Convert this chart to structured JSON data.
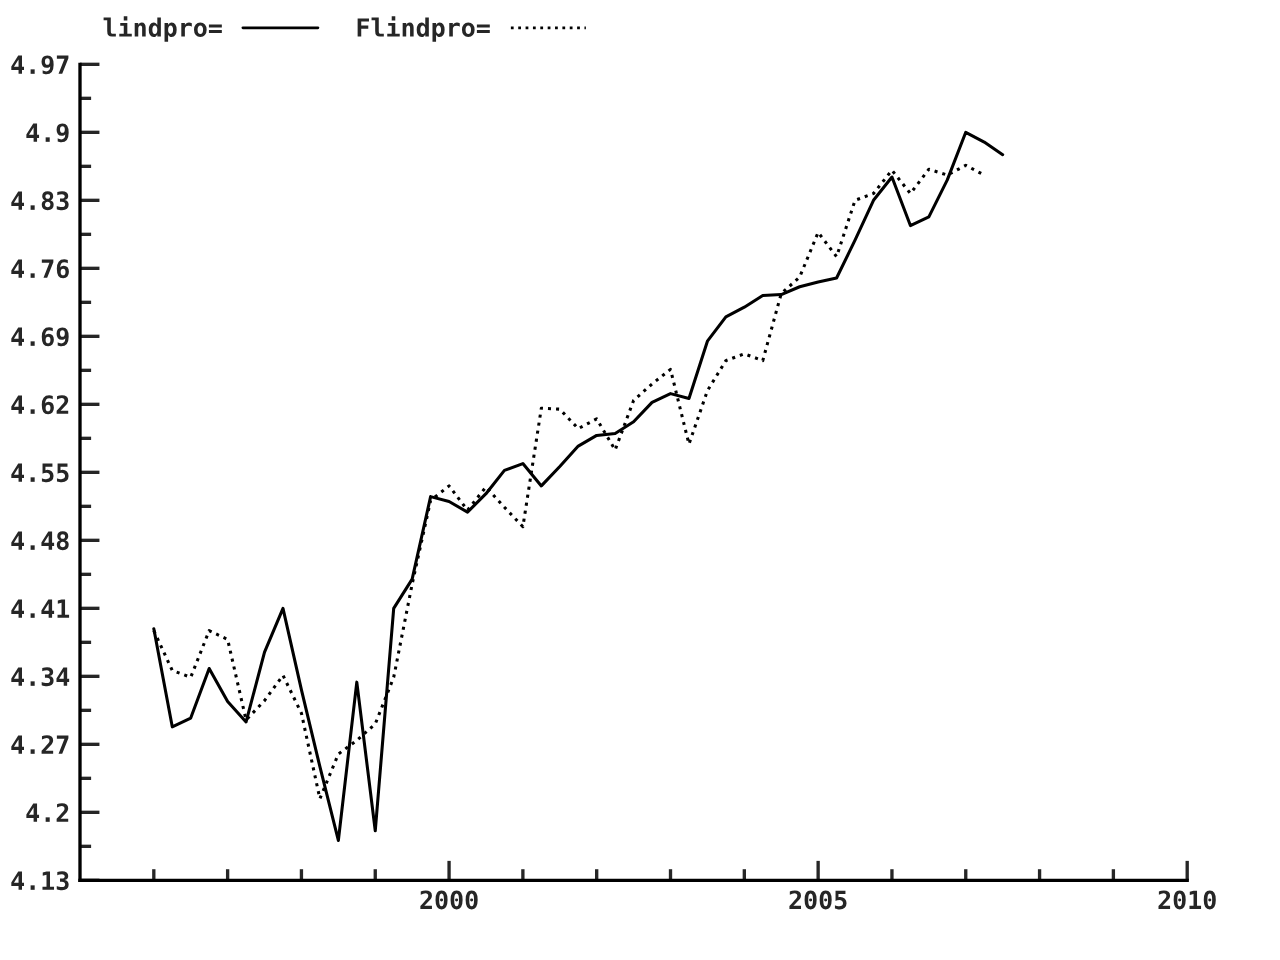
{
  "chart_data": {
    "type": "line",
    "x": [
      1996.0,
      1996.25,
      1996.5,
      1996.75,
      1997.0,
      1997.25,
      1997.5,
      1997.75,
      1998.0,
      1998.25,
      1998.5,
      1998.75,
      1999.0,
      1999.25,
      1999.5,
      1999.75,
      2000.0,
      2000.25,
      2000.5,
      2000.75,
      2001.0,
      2001.25,
      2001.5,
      2001.75,
      2002.0,
      2002.25,
      2002.5,
      2002.75,
      2003.0,
      2003.25,
      2003.5,
      2003.75,
      2004.0,
      2004.25,
      2004.5,
      2004.75,
      2005.0,
      2005.25,
      2005.5,
      2005.75,
      2006.0,
      2006.25,
      2006.5,
      2006.75,
      2007.0,
      2007.25,
      2007.5
    ],
    "series": [
      {
        "name": "lindpro=",
        "color": "#000000",
        "line_style": "solid",
        "values": [
          4.389,
          4.288,
          4.297,
          4.348,
          4.314,
          4.293,
          4.365,
          4.41,
          4.326,
          4.247,
          4.171,
          4.334,
          4.181,
          4.41,
          4.44,
          4.525,
          4.52,
          4.509,
          4.528,
          4.552,
          4.559,
          4.536,
          4.556,
          4.577,
          4.588,
          4.59,
          4.602,
          4.622,
          4.631,
          4.626,
          4.685,
          4.71,
          4.72,
          4.732,
          4.733,
          4.741,
          4.746,
          4.75,
          4.789,
          4.83,
          4.854,
          4.804,
          4.813,
          4.851,
          4.9,
          4.89,
          4.877
        ]
      },
      {
        "name": "Flindpro=",
        "color": "#000000",
        "line_style": "dotted",
        "values": [
          4.387,
          4.346,
          4.339,
          4.387,
          4.378,
          4.295,
          4.315,
          4.341,
          4.302,
          4.214,
          4.26,
          4.274,
          4.291,
          4.339,
          4.435,
          4.521,
          4.536,
          4.511,
          4.535,
          4.514,
          4.494,
          4.616,
          4.615,
          4.595,
          4.605,
          4.573,
          4.624,
          4.641,
          4.656,
          4.579,
          4.634,
          4.665,
          4.672,
          4.665,
          4.734,
          4.751,
          4.797,
          4.772,
          4.83,
          4.837,
          4.861,
          4.837,
          4.862,
          4.856,
          4.866,
          4.856,
          null
        ]
      }
    ],
    "xlim": [
      1995,
      2010
    ],
    "xticks": [
      {
        "value": 1996,
        "label": null
      },
      {
        "value": 1997,
        "label": null
      },
      {
        "value": 1998,
        "label": null
      },
      {
        "value": 1999,
        "label": null
      },
      2000,
      {
        "value": 2001,
        "label": null
      },
      {
        "value": 2002,
        "label": null
      },
      {
        "value": 2003,
        "label": null
      },
      {
        "value": 2004,
        "label": null
      },
      2005,
      {
        "value": 2006,
        "label": null
      },
      {
        "value": 2007,
        "label": null
      },
      {
        "value": 2008,
        "label": null
      },
      {
        "value": 2009,
        "label": null
      },
      2010
    ],
    "ylim": [
      4.13,
      4.97
    ],
    "yticks": [
      4.13,
      {
        "value": 4.165,
        "label": null
      },
      4.2,
      {
        "value": 4.235,
        "label": null
      },
      4.27,
      {
        "value": 4.305,
        "label": null
      },
      4.34,
      {
        "value": 4.375,
        "label": null
      },
      4.41,
      {
        "value": 4.445,
        "label": null
      },
      4.48,
      {
        "value": 4.515,
        "label": null
      },
      4.55,
      {
        "value": 4.585,
        "label": null
      },
      4.62,
      {
        "value": 4.655,
        "label": null
      },
      4.69,
      {
        "value": 4.725,
        "label": null
      },
      4.76,
      {
        "value": 4.795,
        "label": null
      },
      4.83,
      {
        "value": 4.865,
        "label": null
      },
      4.9,
      {
        "value": 4.935,
        "label": null
      },
      4.97
    ],
    "grid": false,
    "legend": "top left",
    "marker": "none"
  }
}
